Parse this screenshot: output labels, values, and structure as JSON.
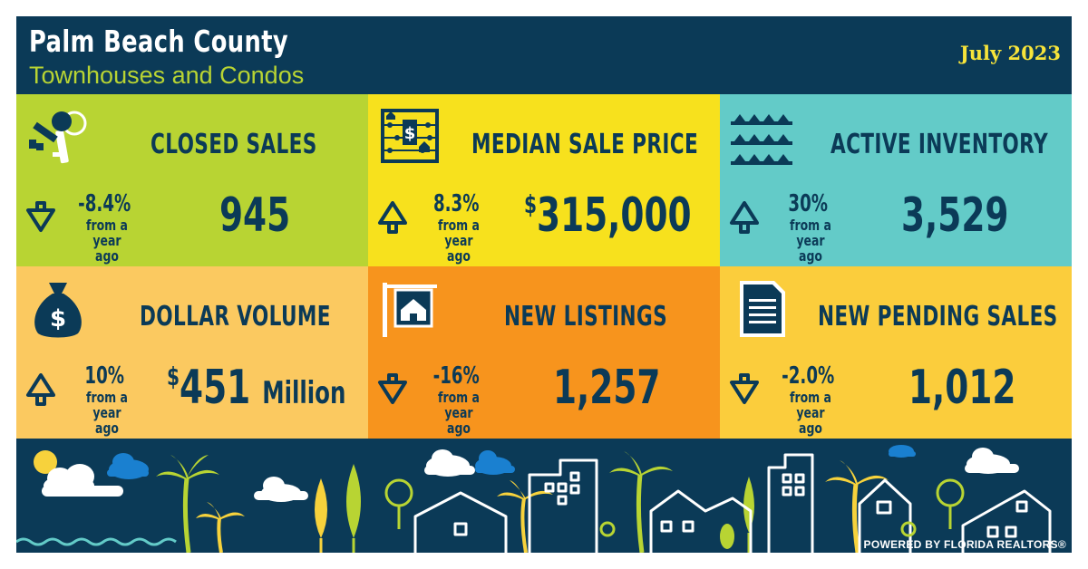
{
  "header": {
    "title": "Palm Beach County",
    "subtitle": "Townhouses and Condos",
    "date": "July 2023"
  },
  "tiles": [
    {
      "title": "CLOSED SALES",
      "icon": "keys-icon",
      "direction": "down",
      "change": "-8.4%",
      "note": "from a year ago",
      "value": "945",
      "currency": "",
      "unit": "",
      "color": "#b8d433"
    },
    {
      "title": "MEDIAN SALE PRICE",
      "icon": "abacus-icon",
      "direction": "up",
      "change": "8.3%",
      "note": "from a year ago",
      "value": "315,000",
      "currency": "$",
      "unit": "",
      "color": "#f7e11d"
    },
    {
      "title": "ACTIVE INVENTORY",
      "icon": "houses-shelf-icon",
      "direction": "up",
      "change": "30%",
      "note": "from a year ago",
      "value": "3,529",
      "currency": "",
      "unit": "",
      "color": "#63cbc8"
    },
    {
      "title": "DOLLAR VOLUME",
      "icon": "money-bag-icon",
      "direction": "up",
      "change": "10%",
      "note": "from a year ago",
      "value": "451",
      "currency": "$",
      "unit": "Million",
      "color": "#fbc960"
    },
    {
      "title": "NEW LISTINGS",
      "icon": "for-sale-sign-icon",
      "direction": "down",
      "change": "-16%",
      "note": "from a year ago",
      "value": "1,257",
      "currency": "",
      "unit": "",
      "color": "#f7941d"
    },
    {
      "title": "NEW PENDING SALES",
      "icon": "document-icon",
      "direction": "down",
      "change": "-2.0%",
      "note": "from a year ago",
      "value": "1,012",
      "currency": "",
      "unit": "",
      "color": "#fbcd3c"
    }
  ],
  "footer": {
    "powered_by": "POWERED BY FLORIDA REALTORS®"
  },
  "colors": {
    "navy": "#0b3a57",
    "green": "#b8d433",
    "yellow": "#f7e11d",
    "teal": "#63cbc8",
    "orange": "#f7941d",
    "gold": "#fbcd3c"
  }
}
